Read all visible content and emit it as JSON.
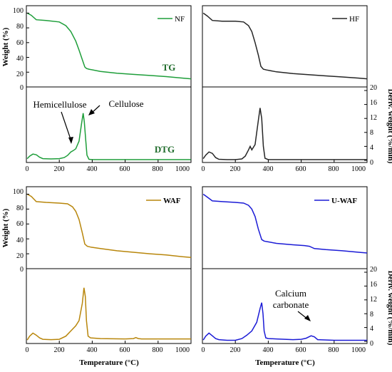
{
  "chart_data": [
    {
      "type": "line",
      "panel": "top-left",
      "legend": "NF",
      "color": "#1e9e3a",
      "curves": {
        "tg": {
          "x": [
            5,
            30,
            60,
            120,
            200,
            240,
            270,
            300,
            320,
            340,
            355,
            365,
            380,
            450,
            550,
            650,
            750,
            850,
            950,
            1000
          ],
          "y": [
            100,
            97,
            91,
            90,
            88,
            83,
            75,
            62,
            50,
            37,
            27,
            25,
            24,
            21,
            18.5,
            17,
            15.5,
            14,
            12,
            11
          ]
        },
        "dtg": {
          "x": [
            5,
            20,
            40,
            60,
            80,
            100,
            150,
            200,
            230,
            250,
            270,
            285,
            300,
            320,
            335,
            345,
            352,
            360,
            368,
            380,
            400,
            500,
            600,
            800,
            1000
          ],
          "y": [
            0.5,
            1.2,
            1.8,
            1.6,
            0.9,
            0.5,
            0.4,
            0.5,
            0.8,
            1.4,
            2.4,
            2.8,
            3.3,
            5.5,
            10.5,
            13.5,
            11,
            6,
            1.5,
            0.3,
            0.2,
            0.2,
            0.2,
            0.2,
            0.2
          ]
        }
      },
      "labels": {
        "tg": "TG",
        "dtg": "DTG",
        "hemicellulose": "Hemicellulose",
        "cellulose": "Cellulose"
      },
      "ylabel_tg": "Weight (%)",
      "yticks_tg": [
        "100",
        "80",
        "60",
        "40",
        "20",
        "0"
      ],
      "xticks": [
        "0",
        "200",
        "400",
        "600",
        "800",
        "1000"
      ]
    },
    {
      "type": "line",
      "panel": "top-right",
      "legend": "HF",
      "color": "#262626",
      "curves": {
        "tg": {
          "x": [
            5,
            30,
            60,
            120,
            200,
            250,
            280,
            300,
            320,
            340,
            355,
            370,
            390,
            450,
            550,
            650,
            750,
            850,
            950,
            1000
          ],
          "y": [
            100,
            96,
            90,
            89,
            89,
            88,
            83,
            75,
            60,
            43,
            28,
            24,
            23,
            20.5,
            18,
            16.5,
            15,
            13.5,
            12,
            11
          ]
        },
        "dtg": {
          "x": [
            5,
            20,
            40,
            60,
            80,
            100,
            150,
            200,
            240,
            260,
            280,
            290,
            300,
            320,
            340,
            350,
            360,
            370,
            380,
            400,
            500,
            600,
            800,
            1000
          ],
          "y": [
            0.5,
            1.5,
            2.4,
            2,
            0.8,
            0.3,
            0.2,
            0.2,
            0.4,
            1.2,
            3,
            4,
            3,
            4.5,
            11.5,
            15,
            12,
            4,
            0.6,
            0.2,
            0.2,
            0.2,
            0.2,
            0.2
          ]
        }
      },
      "ylabel_dtg": "Deriv. weight (%/min)",
      "yticks_dtg": [
        "20",
        "16",
        "12",
        "8",
        "4",
        "0"
      ],
      "xticks": [
        "0",
        "200",
        "400",
        "600",
        "800",
        "1000"
      ]
    },
    {
      "type": "line",
      "panel": "bottom-left",
      "legend": "WAF",
      "color": "#b8860b",
      "curves": {
        "tg": {
          "x": [
            5,
            30,
            60,
            120,
            200,
            250,
            280,
            300,
            320,
            340,
            355,
            370,
            390,
            450,
            550,
            650,
            750,
            850,
            950,
            1000
          ],
          "y": [
            100,
            97,
            90,
            89,
            88,
            87,
            83,
            77,
            66,
            48,
            33,
            30,
            29,
            27,
            24,
            22,
            20,
            18.5,
            16,
            15
          ]
        },
        "dtg": {
          "x": [
            5,
            20,
            40,
            60,
            80,
            100,
            150,
            200,
            240,
            270,
            300,
            320,
            340,
            350,
            358,
            365,
            375,
            390,
            450,
            600,
            650,
            665,
            680,
            700,
            800,
            1000
          ],
          "y": [
            0.4,
            1.5,
            2.4,
            1.8,
            1,
            0.6,
            0.5,
            0.6,
            1.5,
            3,
            4.5,
            6,
            11,
            15.5,
            13,
            6,
            1.5,
            1,
            0.8,
            0.7,
            0.8,
            1.1,
            0.8,
            0.7,
            0.7,
            0.7
          ]
        }
      },
      "ylabel_tg": "Weight (%)",
      "yticks_tg": [
        "100",
        "80",
        "60",
        "40",
        "20",
        "0"
      ],
      "xlabel": "Temperature (°C)",
      "xticks": [
        "0",
        "200",
        "400",
        "600",
        "800",
        "1000"
      ]
    },
    {
      "type": "line",
      "panel": "bottom-right",
      "legend": "U-WAF",
      "color": "#1b1bd6",
      "curves": {
        "tg": {
          "x": [
            5,
            30,
            60,
            120,
            200,
            250,
            280,
            300,
            320,
            340,
            360,
            375,
            400,
            450,
            550,
            620,
            650,
            680,
            750,
            850,
            950,
            1000
          ],
          "y": [
            100,
            96,
            91,
            90,
            89,
            88,
            85,
            80,
            70,
            53,
            39,
            37,
            36,
            34,
            32,
            31,
            30,
            27,
            25.5,
            24,
            22,
            21
          ]
        },
        "dtg": {
          "x": [
            5,
            20,
            40,
            60,
            80,
            100,
            150,
            200,
            240,
            270,
            300,
            330,
            350,
            360,
            368,
            375,
            385,
            400,
            450,
            550,
            600,
            630,
            660,
            680,
            700,
            800,
            1000
          ],
          "y": [
            0.4,
            1.5,
            2.4,
            1.6,
            0.8,
            0.5,
            0.3,
            0.3,
            0.8,
            1.8,
            3,
            5.5,
            9.5,
            11.2,
            8,
            3,
            1,
            0.8,
            0.7,
            0.5,
            0.6,
            0.9,
            1.6,
            1.3,
            0.5,
            0.3,
            0.3
          ]
        }
      },
      "ylabel_dtg": "Deriv. weight (%/min)",
      "yticks_dtg": [
        "20",
        "16",
        "12",
        "8",
        "4",
        "0"
      ],
      "xlabel": "Temperature (°C)",
      "xticks": [
        "0",
        "200",
        "400",
        "600",
        "800",
        "1000"
      ],
      "labels": {
        "calcium_line1": "Calcium",
        "calcium_line2": "carbonate"
      }
    }
  ]
}
